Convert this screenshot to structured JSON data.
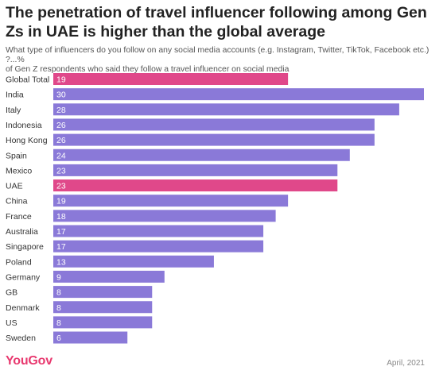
{
  "chart_data": {
    "type": "bar",
    "orientation": "horizontal",
    "title": "The penetration of travel influencer following among Gen Zs in UAE is higher than the global average",
    "subtitle_line1": "What type of influencers do you follow on any social media accounts (e.g. Instagram, Twitter, TikTok, Facebook etc.) ?...%",
    "subtitle_line2": "of Gen Z respondents who said they follow a travel influencer on social media",
    "categories": [
      "Global Total",
      "India",
      "Italy",
      "Indonesia",
      "Hong Kong",
      "Spain",
      "Mexico",
      "UAE",
      "China",
      "France",
      "Australia",
      "Singapore",
      "Poland",
      "Germany",
      "GB",
      "Denmark",
      "US",
      "Sweden"
    ],
    "values": [
      19,
      30,
      28,
      26,
      26,
      24,
      23,
      23,
      19,
      18,
      17,
      17,
      13,
      9,
      8,
      8,
      8,
      6
    ],
    "highlighted": [
      "Global Total",
      "UAE"
    ],
    "xlim": [
      0,
      30
    ],
    "grid": false,
    "legend": "none",
    "colors": {
      "default": "#8a79d8",
      "highlight": "#e0488a"
    }
  },
  "footer": {
    "logo": "YouGov",
    "date": "April, 2021"
  }
}
